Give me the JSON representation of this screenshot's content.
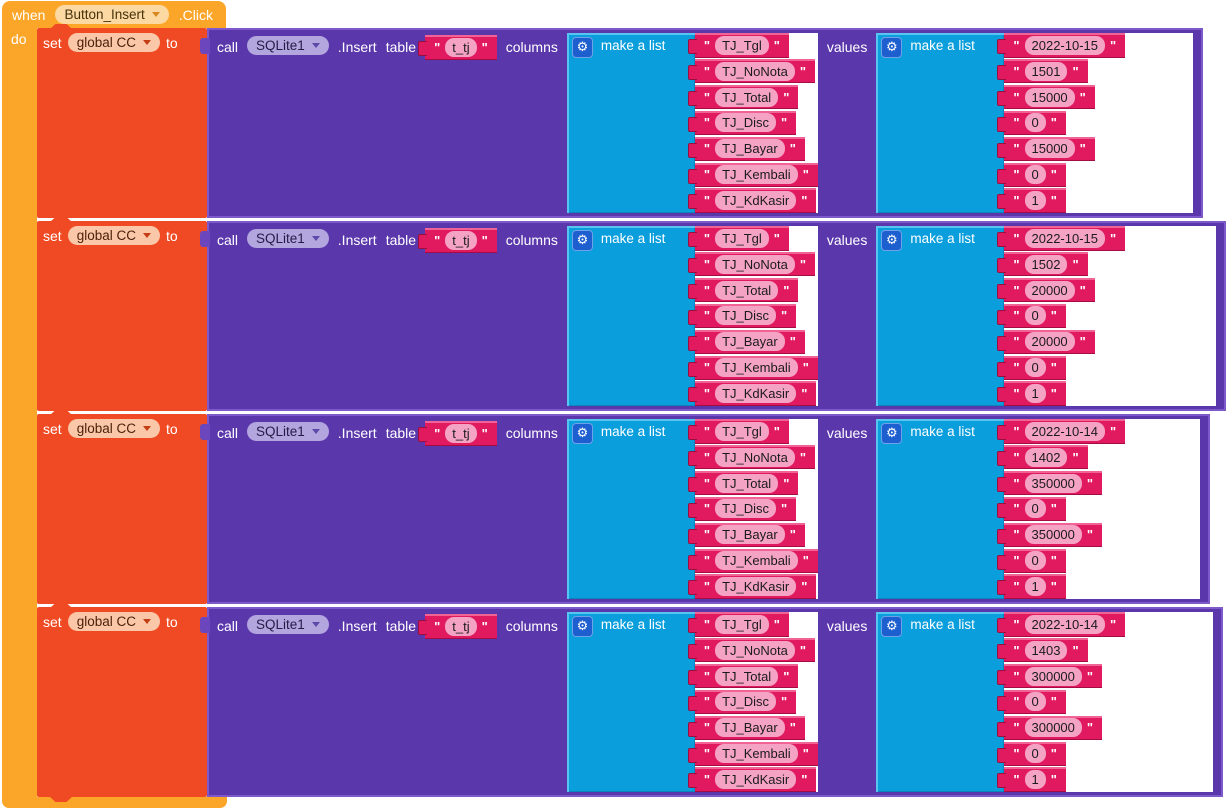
{
  "header": {
    "when_label": "when",
    "event_source": "Button_Insert",
    "event_name": ".Click",
    "do_label": "do"
  },
  "labels": {
    "set": "set",
    "to": "to",
    "call": "call",
    "method": ".Insert",
    "table": "table",
    "columns": "columns",
    "values": "values",
    "make_a_list": "make a list",
    "quote": "\""
  },
  "icons": {
    "gear": "⚙"
  },
  "colors": {
    "event_gold": "#FCA629",
    "variable_orange": "#EF4A23",
    "component_purple": "#5B37AC",
    "purple_border": "#7D59CC",
    "list_cyan": "#0A9EDC",
    "text_crimson": "#E1195E",
    "field_pink": "#F5A3C5",
    "gear_blue": "#1E5FD0"
  },
  "rows": [
    {
      "variable": "global CC",
      "component": "SQLite1",
      "table": "t_tj",
      "columns": [
        "TJ_Tgl",
        "TJ_NoNota",
        "TJ_Total",
        "TJ_Disc",
        "TJ_Bayar",
        "TJ_Kembali",
        "TJ_KdKasir"
      ],
      "values": [
        "2022-10-15",
        "1501",
        "15000",
        "0",
        "15000",
        "0",
        "1"
      ]
    },
    {
      "variable": "global CC",
      "component": "SQLite1",
      "table": "t_tj",
      "columns": [
        "TJ_Tgl",
        "TJ_NoNota",
        "TJ_Total",
        "TJ_Disc",
        "TJ_Bayar",
        "TJ_Kembali",
        "TJ_KdKasir"
      ],
      "values": [
        "2022-10-15",
        "1502",
        "20000",
        "0",
        "20000",
        "0",
        "1"
      ]
    },
    {
      "variable": "global CC",
      "component": "SQLite1",
      "table": "t_tj",
      "columns": [
        "TJ_Tgl",
        "TJ_NoNota",
        "TJ_Total",
        "TJ_Disc",
        "TJ_Bayar",
        "TJ_Kembali",
        "TJ_KdKasir"
      ],
      "values": [
        "2022-10-14",
        "1402",
        "350000",
        "0",
        "350000",
        "0",
        "1"
      ]
    },
    {
      "variable": "global CC",
      "component": "SQLite1",
      "table": "t_tj",
      "columns": [
        "TJ_Tgl",
        "TJ_NoNota",
        "TJ_Total",
        "TJ_Disc",
        "TJ_Bayar",
        "TJ_Kembali",
        "TJ_KdKasir"
      ],
      "values": [
        "2022-10-14",
        "1403",
        "300000",
        "0",
        "300000",
        "0",
        "1"
      ]
    }
  ]
}
